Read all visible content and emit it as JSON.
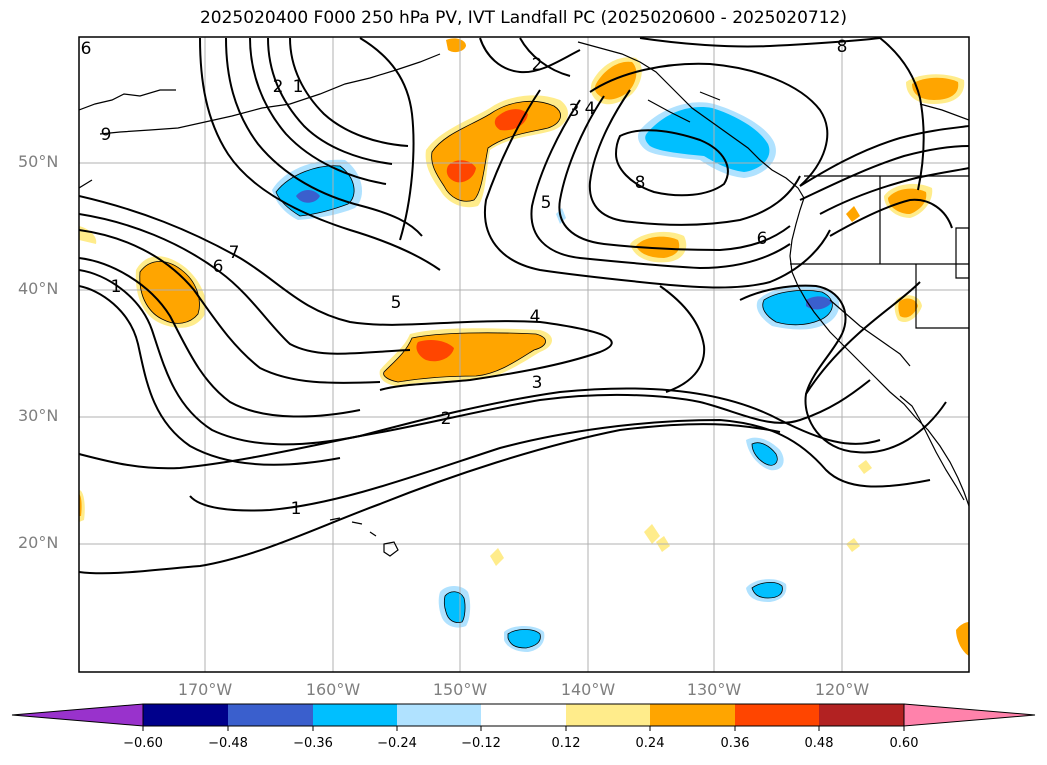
{
  "title": "2025020400 F000 250 hPa PV, IVT Landfall PC (2025020600 - 2025020712)",
  "map": {
    "lat_labels": [
      "50°N",
      "40°N",
      "30°N",
      "20°N"
    ],
    "lon_labels": [
      "170°W",
      "160°W",
      "150°W",
      "140°W",
      "130°W",
      "120°W"
    ],
    "contour_labels": [
      "6",
      "9",
      "2",
      "1",
      "7",
      "6",
      "1",
      "5",
      "4",
      "3",
      "2",
      "1",
      "2",
      "3",
      "4",
      "5",
      "8",
      "6",
      "8"
    ]
  },
  "colorbar": {
    "colors": [
      "#9932cc",
      "#00008b",
      "#3a5fcd",
      "#00bfff",
      "#b0e2ff",
      "#ffffff",
      "#ffec8b",
      "#ffa500",
      "#ff4500",
      "#b22222",
      "#ff82ab"
    ],
    "tick_labels": [
      "−0.60",
      "−0.48",
      "−0.36",
      "−0.24",
      "−0.12",
      "0.12",
      "0.24",
      "0.36",
      "0.48",
      "0.60"
    ]
  }
}
